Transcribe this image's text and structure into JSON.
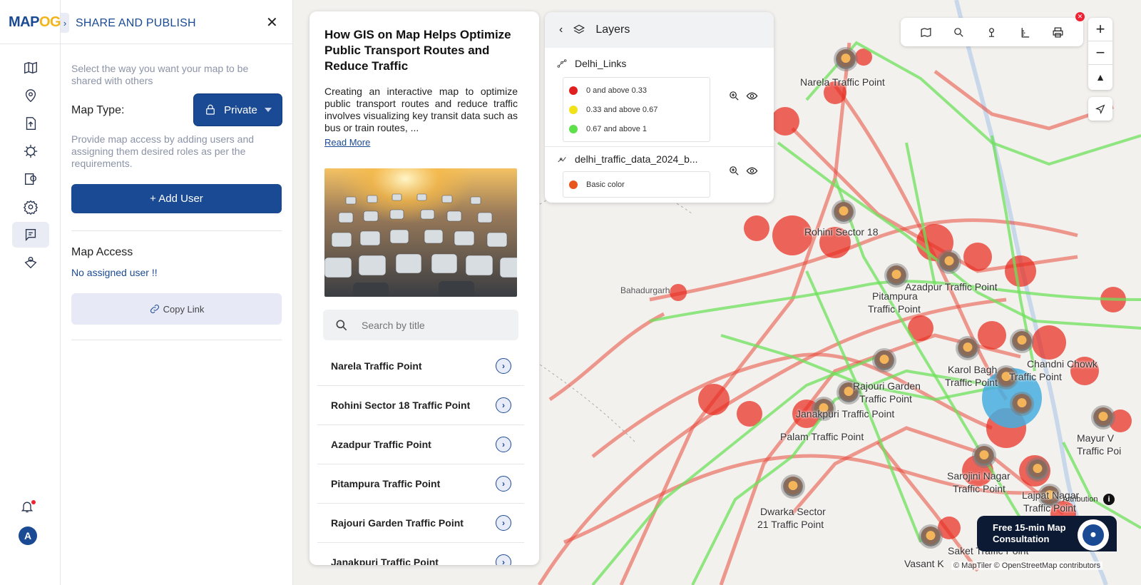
{
  "logo": {
    "part1": "MAP",
    "part2": "OG"
  },
  "share_panel": {
    "title": "SHARE AND PUBLISH",
    "intro": "Select the way you want your map to be shared with others",
    "map_type_label": "Map Type:",
    "map_type_value": "Private",
    "access_help": "Provide map access by adding users and assigning them desired roles as per the requirements.",
    "add_user_label": "+ Add User",
    "map_access_title": "Map Access",
    "no_user_text": "No assigned user !!",
    "copy_link_label": "Copy Link"
  },
  "rail": {
    "avatar_initial": "A"
  },
  "story": {
    "title": "How GIS on Map Helps Optimize Public Transport Routes and Reduce Traffic",
    "description": "Creating an interactive map to optimize public transport routes and reduce traffic involves visualizing key transit data such as bus or train routes, ...",
    "read_more": "Read More",
    "search_placeholder": "Search by title",
    "items": [
      {
        "label": "Narela Traffic Point"
      },
      {
        "label": "Rohini Sector 18 Traffic Point"
      },
      {
        "label": "Azadpur Traffic Point"
      },
      {
        "label": "Pitampura Traffic Point"
      },
      {
        "label": "Rajouri Garden Traffic Point"
      },
      {
        "label": "Janakpuri Traffic Point"
      }
    ]
  },
  "layers": {
    "title": "Layers",
    "layer1": {
      "name": "Delhi_Links",
      "legend": [
        {
          "label": "0 and above 0.33",
          "color": "#e02020"
        },
        {
          "label": "0.33 and above 0.67",
          "color": "#f2e21a"
        },
        {
          "label": "0.67 and above 1",
          "color": "#5ee04a"
        }
      ]
    },
    "layer2": {
      "name": "delhi_traffic_data_2024_b...",
      "legend": [
        {
          "label": "Basic color",
          "color": "#e8561e"
        }
      ]
    }
  },
  "map": {
    "labels": {
      "narela": "Narela Traffic Point",
      "rohini": "Rohini Sector 18",
      "azadpur": "Azadpur Traffic Point",
      "pitampura1": "Pitampura",
      "pitampura2": "Traffic Point",
      "bahadurgarh": "Bahadurgarh",
      "chandni1": "Chandni Chowk",
      "chandni2": "Traffic Point",
      "karol1": "Karol Bagh",
      "karol2": "Traffic Point",
      "rajouri1": "Rajouri Garden",
      "rajouri2": "Traffic Point",
      "janakpuri": "Janakpuri Traffic Point",
      "palam": "Palam Traffic Point",
      "mayur1": "Mayur V",
      "mayur2": "Traffic Poi",
      "sarojini1": "Sarojini Nagar",
      "sarojini2": "Traffic Point",
      "lajpat1": "Lajpat Nagar",
      "lajpat2": "Traffic Point",
      "dwarka1": "Dwarka Sector",
      "dwarka2": "21 Traffic Point",
      "saket": "Saket Traffic Point",
      "vasant": "Vasant K"
    },
    "attribution": "Attribution",
    "copyright": "© MapTiler © OpenStreetMap contributors",
    "consult_line1": "Free 15-min Map",
    "consult_line2": "Consultation",
    "zoom_in": "+",
    "zoom_out": "−"
  }
}
